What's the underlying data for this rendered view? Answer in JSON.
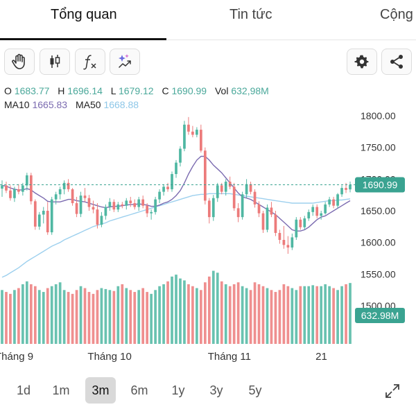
{
  "tabs": [
    {
      "label": "Tổng quan",
      "active": true
    },
    {
      "label": "Tin tức",
      "active": false
    },
    {
      "label": "Cộng",
      "active": false
    }
  ],
  "toolbar": {
    "left_icons": [
      "hand-icon",
      "candlestick-icon",
      "function-icon",
      "ai-sparkle-icon"
    ],
    "right_icons": [
      "gear-icon",
      "share-icon"
    ]
  },
  "quote": {
    "o_label": "O",
    "o_value": "1683.77",
    "h_label": "H",
    "h_value": "1696.14",
    "l_label": "L",
    "l_value": "1679.12",
    "c_label": "C",
    "c_value": "1690.99",
    "vol_label": "Vol",
    "vol_value": "632,98M"
  },
  "ma": {
    "ma10_label": "MA10",
    "ma10_value": "1665.83",
    "ma50_label": "MA50",
    "ma50_value": "1668.88"
  },
  "colors": {
    "up": "#4fb7a2",
    "down": "#ec7b7b",
    "ma10": "#7b6bb0",
    "ma50": "#9dd0ee",
    "price_tag": "#3aa391"
  },
  "chart_data": {
    "type": "candlestick",
    "y_ticks": [
      "1800.00",
      "1750.00",
      "1700.00",
      "1650.00",
      "1600.00",
      "1550.00",
      "1500.00"
    ],
    "ylim": [
      1500,
      1800
    ],
    "x_labels": [
      "Tháng 9",
      "Tháng 10",
      "Tháng 11",
      "21"
    ],
    "last_price": "1690.99",
    "last_volume": "632.98M",
    "candles": [
      [
        1685,
        1698,
        1672,
        1690
      ],
      [
        1690,
        1696,
        1678,
        1682
      ],
      [
        1682,
        1690,
        1666,
        1670
      ],
      [
        1670,
        1688,
        1664,
        1684
      ],
      [
        1684,
        1692,
        1676,
        1680
      ],
      [
        1680,
        1694,
        1674,
        1690
      ],
      [
        1690,
        1710,
        1682,
        1706
      ],
      [
        1706,
        1710,
        1660,
        1665
      ],
      [
        1665,
        1668,
        1620,
        1625
      ],
      [
        1625,
        1648,
        1620,
        1644
      ],
      [
        1644,
        1656,
        1630,
        1650
      ],
      [
        1650,
        1664,
        1612,
        1616
      ],
      [
        1616,
        1672,
        1612,
        1668
      ],
      [
        1668,
        1680,
        1660,
        1676
      ],
      [
        1676,
        1688,
        1668,
        1684
      ],
      [
        1684,
        1698,
        1676,
        1694
      ],
      [
        1694,
        1700,
        1680,
        1684
      ],
      [
        1684,
        1686,
        1658,
        1662
      ],
      [
        1662,
        1672,
        1640,
        1645
      ],
      [
        1645,
        1680,
        1640,
        1674
      ],
      [
        1674,
        1686,
        1664,
        1670
      ],
      [
        1670,
        1675,
        1650,
        1656
      ],
      [
        1656,
        1666,
        1646,
        1652
      ],
      [
        1652,
        1662,
        1622,
        1628
      ],
      [
        1628,
        1648,
        1624,
        1642
      ],
      [
        1642,
        1660,
        1636,
        1656
      ],
      [
        1656,
        1670,
        1650,
        1664
      ],
      [
        1664,
        1668,
        1648,
        1652
      ],
      [
        1652,
        1664,
        1648,
        1660
      ],
      [
        1660,
        1664,
        1654,
        1658
      ],
      [
        1658,
        1670,
        1652,
        1666
      ],
      [
        1666,
        1672,
        1656,
        1662
      ],
      [
        1662,
        1668,
        1652,
        1656
      ],
      [
        1656,
        1672,
        1650,
        1668
      ],
      [
        1668,
        1674,
        1654,
        1658
      ],
      [
        1658,
        1662,
        1640,
        1646
      ],
      [
        1646,
        1652,
        1636,
        1648
      ],
      [
        1648,
        1672,
        1644,
        1668
      ],
      [
        1668,
        1684,
        1662,
        1680
      ],
      [
        1680,
        1692,
        1674,
        1688
      ],
      [
        1688,
        1694,
        1680,
        1684
      ],
      [
        1684,
        1712,
        1680,
        1708
      ],
      [
        1708,
        1730,
        1702,
        1726
      ],
      [
        1726,
        1752,
        1720,
        1748
      ],
      [
        1748,
        1792,
        1744,
        1786
      ],
      [
        1786,
        1798,
        1770,
        1775
      ],
      [
        1775,
        1784,
        1766,
        1770
      ],
      [
        1770,
        1782,
        1766,
        1778
      ],
      [
        1778,
        1786,
        1742,
        1745
      ],
      [
        1745,
        1750,
        1660,
        1666
      ],
      [
        1666,
        1670,
        1630,
        1640
      ],
      [
        1640,
        1675,
        1634,
        1670
      ],
      [
        1670,
        1694,
        1664,
        1690
      ],
      [
        1690,
        1694,
        1676,
        1680
      ],
      [
        1680,
        1700,
        1674,
        1696
      ],
      [
        1696,
        1704,
        1684,
        1688
      ],
      [
        1688,
        1694,
        1650,
        1654
      ],
      [
        1654,
        1662,
        1632,
        1640
      ],
      [
        1640,
        1680,
        1636,
        1676
      ],
      [
        1676,
        1700,
        1670,
        1692
      ],
      [
        1692,
        1696,
        1676,
        1680
      ],
      [
        1680,
        1684,
        1655,
        1660
      ],
      [
        1660,
        1665,
        1640,
        1646
      ],
      [
        1646,
        1650,
        1615,
        1620
      ],
      [
        1620,
        1660,
        1616,
        1655
      ],
      [
        1655,
        1664,
        1640,
        1644
      ],
      [
        1644,
        1650,
        1610,
        1615
      ],
      [
        1615,
        1620,
        1598,
        1604
      ],
      [
        1604,
        1626,
        1590,
        1596
      ],
      [
        1596,
        1610,
        1582,
        1592
      ],
      [
        1592,
        1614,
        1588,
        1608
      ],
      [
        1608,
        1640,
        1604,
        1636
      ],
      [
        1636,
        1640,
        1620,
        1624
      ],
      [
        1624,
        1642,
        1620,
        1638
      ],
      [
        1638,
        1652,
        1634,
        1648
      ],
      [
        1648,
        1660,
        1642,
        1656
      ],
      [
        1656,
        1660,
        1638,
        1642
      ],
      [
        1642,
        1650,
        1636,
        1646
      ],
      [
        1646,
        1664,
        1644,
        1660
      ],
      [
        1660,
        1672,
        1656,
        1668
      ],
      [
        1668,
        1672,
        1654,
        1658
      ],
      [
        1658,
        1678,
        1654,
        1676
      ],
      [
        1676,
        1690,
        1672,
        1686
      ],
      [
        1686,
        1694,
        1678,
        1683
      ],
      [
        1683.77,
        1696.14,
        1679.12,
        1690.99
      ]
    ],
    "ma10": [
      1690,
      1689,
      1686,
      1684,
      1683,
      1683,
      1685,
      1683,
      1678,
      1674,
      1670,
      1665,
      1664,
      1664,
      1664,
      1666,
      1668,
      1668,
      1666,
      1665,
      1664,
      1662,
      1660,
      1658,
      1656,
      1655,
      1656,
      1657,
      1657,
      1658,
      1659,
      1660,
      1660,
      1661,
      1660,
      1659,
      1657,
      1657,
      1659,
      1662,
      1664,
      1668,
      1674,
      1682,
      1694,
      1708,
      1720,
      1730,
      1736,
      1736,
      1730,
      1722,
      1716,
      1710,
      1702,
      1694,
      1686,
      1678,
      1672,
      1670,
      1668,
      1664,
      1660,
      1656,
      1652,
      1648,
      1644,
      1638,
      1632,
      1626,
      1620,
      1618,
      1618,
      1620,
      1624,
      1630,
      1636,
      1640,
      1642,
      1646,
      1650,
      1654,
      1658,
      1662,
      1665.83
    ],
    "ma50": [
      1545,
      1548,
      1552,
      1556,
      1560,
      1565,
      1570,
      1574,
      1578,
      1582,
      1586,
      1590,
      1594,
      1597,
      1600,
      1604,
      1607,
      1610,
      1613,
      1616,
      1619,
      1622,
      1625,
      1627,
      1629,
      1631,
      1634,
      1636,
      1638,
      1640,
      1642,
      1644,
      1646,
      1648,
      1650,
      1652,
      1654,
      1656,
      1658,
      1660,
      1662,
      1664,
      1666,
      1668,
      1670,
      1672,
      1674,
      1675,
      1676,
      1676,
      1677,
      1677,
      1677,
      1677,
      1677,
      1677,
      1676,
      1675,
      1674,
      1673,
      1672,
      1671,
      1670,
      1669,
      1668,
      1667,
      1666,
      1665,
      1664,
      1663,
      1662,
      1662,
      1662,
      1662,
      1662,
      1662,
      1663,
      1664,
      1665,
      1666,
      1666,
      1667,
      1667,
      1668,
      1668.88
    ],
    "volumes": [
      560,
      540,
      520,
      560,
      580,
      620,
      650,
      620,
      600,
      560,
      540,
      580,
      600,
      620,
      640,
      560,
      540,
      520,
      560,
      600,
      580,
      540,
      520,
      560,
      580,
      570,
      560,
      550,
      600,
      620,
      580,
      560,
      540,
      560,
      580,
      540,
      520,
      560,
      600,
      620,
      650,
      700,
      720,
      680,
      660,
      620,
      600,
      580,
      560,
      640,
      700,
      760,
      740,
      650,
      620,
      600,
      620,
      640,
      600,
      580,
      560,
      640,
      620,
      600,
      580,
      560,
      540,
      560,
      620,
      600,
      580,
      560,
      600,
      600,
      600,
      610,
      600,
      600,
      620,
      600,
      580,
      560,
      600,
      620,
      632.98
    ],
    "vol_max": 800
  },
  "ranges": {
    "items": [
      "1d",
      "1m",
      "3m",
      "6m",
      "1y",
      "3y",
      "5y"
    ],
    "active": "3m"
  }
}
